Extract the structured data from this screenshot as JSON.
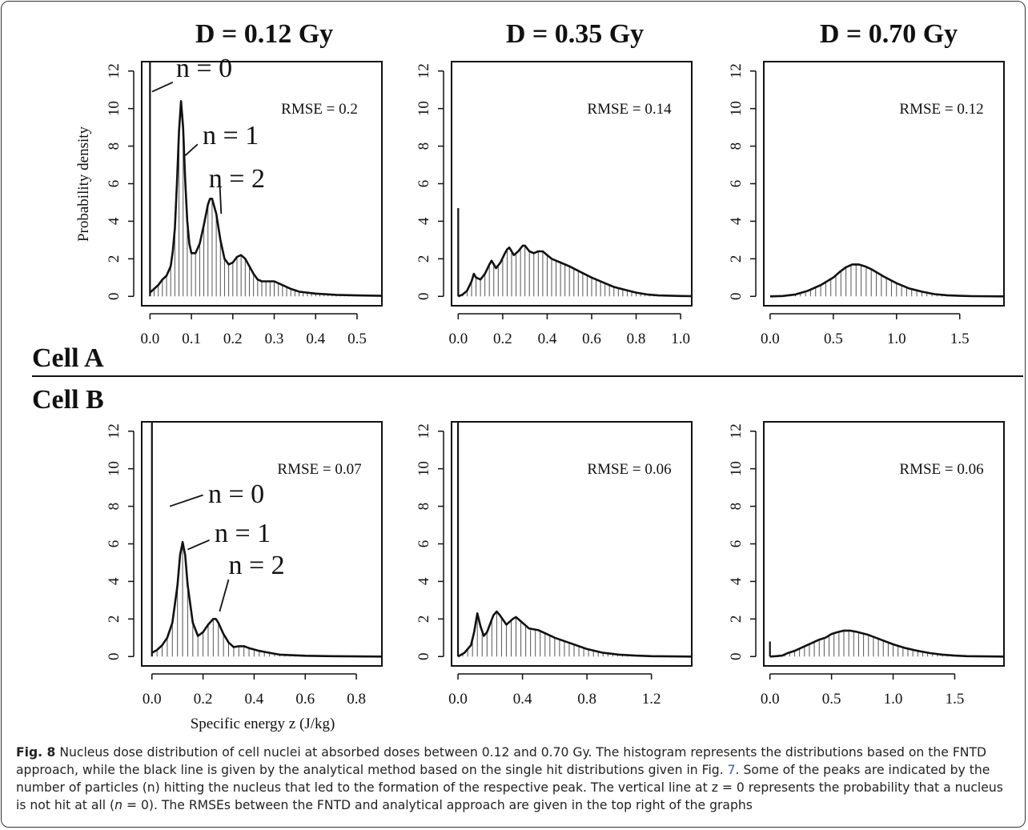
{
  "figure": {
    "column_titles": [
      "D = 0.12 Gy",
      "D = 0.35 Gy",
      "D = 0.70 Gy"
    ],
    "row_labels": [
      "Cell A",
      "Cell B"
    ],
    "y_axis_label": "Probability density",
    "x_axis_label": "Specific energy z (J/kg)"
  },
  "chart_data": [
    {
      "type": "bar",
      "cell": "Cell A",
      "dose": "D = 0.12 Gy",
      "xlim": [
        -0.02,
        0.56
      ],
      "ylim": [
        -0.5,
        12.5
      ],
      "xticks": [
        "0.0",
        "0.1",
        "0.2",
        "0.3",
        "0.4",
        "0.5"
      ],
      "xtick_values": [
        0,
        0.1,
        0.2,
        0.3,
        0.4,
        0.5
      ],
      "yticks": [
        "0",
        "2",
        "4",
        "6",
        "8",
        "10",
        "12"
      ],
      "ytick_values": [
        0,
        2,
        4,
        6,
        8,
        10,
        12
      ],
      "rmse": "RMSE = 0.2",
      "zero_hit_height": 12.5,
      "annotations": [
        {
          "label": "n = 0",
          "text_x": 0.063,
          "text_y": 11.7,
          "line": [
            [
              0.055,
              11.4
            ],
            [
              0.005,
              10.9
            ]
          ]
        },
        {
          "label": "n = 1",
          "text_x": 0.127,
          "text_y": 8.1,
          "line": [
            [
              0.115,
              8.1
            ],
            [
              0.085,
              7.5
            ]
          ]
        },
        {
          "label": "n = 2",
          "text_x": 0.142,
          "text_y": 5.8,
          "line": [
            [
              0.168,
              6.2
            ],
            [
              0.172,
              4.4
            ]
          ]
        }
      ],
      "bin_width": 0.01,
      "curve": [
        [
          0,
          0.2
        ],
        [
          0.01,
          0.4
        ],
        [
          0.02,
          0.6
        ],
        [
          0.03,
          0.9
        ],
        [
          0.04,
          1.1
        ],
        [
          0.05,
          1.6
        ],
        [
          0.055,
          2.4
        ],
        [
          0.06,
          3.6
        ],
        [
          0.065,
          6.0
        ],
        [
          0.07,
          8.8
        ],
        [
          0.075,
          10.4
        ],
        [
          0.08,
          9.0
        ],
        [
          0.085,
          6.2
        ],
        [
          0.09,
          4.0
        ],
        [
          0.095,
          2.8
        ],
        [
          0.1,
          2.3
        ],
        [
          0.11,
          2.3
        ],
        [
          0.12,
          2.8
        ],
        [
          0.13,
          3.8
        ],
        [
          0.14,
          4.9
        ],
        [
          0.145,
          5.2
        ],
        [
          0.15,
          5.2
        ],
        [
          0.16,
          4.4
        ],
        [
          0.17,
          3.0
        ],
        [
          0.18,
          2.0
        ],
        [
          0.19,
          1.7
        ],
        [
          0.2,
          1.8
        ],
        [
          0.21,
          2.1
        ],
        [
          0.22,
          2.2
        ],
        [
          0.23,
          2.0
        ],
        [
          0.24,
          1.6
        ],
        [
          0.25,
          1.2
        ],
        [
          0.26,
          0.9
        ],
        [
          0.27,
          0.8
        ],
        [
          0.28,
          0.8
        ],
        [
          0.3,
          0.8
        ],
        [
          0.32,
          0.6
        ],
        [
          0.34,
          0.4
        ],
        [
          0.36,
          0.25
        ],
        [
          0.4,
          0.15
        ],
        [
          0.45,
          0.08
        ],
        [
          0.5,
          0.05
        ],
        [
          0.56,
          0.03
        ]
      ]
    },
    {
      "type": "bar",
      "cell": "Cell A",
      "dose": "D = 0.35 Gy",
      "xlim": [
        -0.03,
        1.05
      ],
      "ylim": [
        -0.5,
        12.5
      ],
      "xticks": [
        "0.0",
        "0.2",
        "0.4",
        "0.6",
        "0.8",
        "1.0"
      ],
      "xtick_values": [
        0,
        0.2,
        0.4,
        0.6,
        0.8,
        1.0
      ],
      "yticks": [
        "0",
        "2",
        "4",
        "6",
        "8",
        "10",
        "12"
      ],
      "ytick_values": [
        0,
        2,
        4,
        6,
        8,
        10,
        12
      ],
      "rmse": "RMSE = 0.14",
      "zero_hit_height": 4.7,
      "annotations": [],
      "bin_width": 0.02,
      "curve": [
        [
          0,
          0
        ],
        [
          0.02,
          0.1
        ],
        [
          0.04,
          0.3
        ],
        [
          0.06,
          0.8
        ],
        [
          0.07,
          1.2
        ],
        [
          0.08,
          1.0
        ],
        [
          0.1,
          0.9
        ],
        [
          0.12,
          1.2
        ],
        [
          0.14,
          1.7
        ],
        [
          0.15,
          1.9
        ],
        [
          0.17,
          1.5
        ],
        [
          0.19,
          1.8
        ],
        [
          0.21,
          2.3
        ],
        [
          0.22,
          2.5
        ],
        [
          0.23,
          2.6
        ],
        [
          0.25,
          2.2
        ],
        [
          0.27,
          2.4
        ],
        [
          0.29,
          2.7
        ],
        [
          0.3,
          2.7
        ],
        [
          0.32,
          2.4
        ],
        [
          0.34,
          2.3
        ],
        [
          0.36,
          2.4
        ],
        [
          0.38,
          2.4
        ],
        [
          0.4,
          2.2
        ],
        [
          0.42,
          2.0
        ],
        [
          0.44,
          1.9
        ],
        [
          0.46,
          1.8
        ],
        [
          0.5,
          1.6
        ],
        [
          0.55,
          1.3
        ],
        [
          0.6,
          1.0
        ],
        [
          0.65,
          0.75
        ],
        [
          0.7,
          0.5
        ],
        [
          0.75,
          0.35
        ],
        [
          0.8,
          0.2
        ],
        [
          0.85,
          0.1
        ],
        [
          0.9,
          0.05
        ],
        [
          1.0,
          0.02
        ],
        [
          1.05,
          0.01
        ]
      ]
    },
    {
      "type": "bar",
      "cell": "Cell A",
      "dose": "D = 0.70 Gy",
      "xlim": [
        -0.05,
        1.85
      ],
      "ylim": [
        -0.5,
        12.5
      ],
      "xticks": [
        "0.0",
        "0.5",
        "1.0",
        "1.5"
      ],
      "xtick_values": [
        0,
        0.5,
        1.0,
        1.5
      ],
      "yticks": [
        "0",
        "2",
        "4",
        "6",
        "8",
        "10",
        "12"
      ],
      "ytick_values": [
        0,
        2,
        4,
        6,
        8,
        10,
        12
      ],
      "rmse": "RMSE = 0.12",
      "zero_hit_height": 0,
      "annotations": [],
      "bin_width": 0.04,
      "curve": [
        [
          0,
          0
        ],
        [
          0.1,
          0.02
        ],
        [
          0.2,
          0.1
        ],
        [
          0.3,
          0.3
        ],
        [
          0.4,
          0.6
        ],
        [
          0.5,
          1.0
        ],
        [
          0.55,
          1.3
        ],
        [
          0.6,
          1.55
        ],
        [
          0.65,
          1.7
        ],
        [
          0.7,
          1.7
        ],
        [
          0.75,
          1.6
        ],
        [
          0.8,
          1.45
        ],
        [
          0.9,
          1.05
        ],
        [
          1.0,
          0.7
        ],
        [
          1.1,
          0.42
        ],
        [
          1.2,
          0.25
        ],
        [
          1.3,
          0.12
        ],
        [
          1.4,
          0.06
        ],
        [
          1.5,
          0.03
        ],
        [
          1.6,
          0.01
        ],
        [
          1.85,
          0
        ]
      ]
    },
    {
      "type": "bar",
      "cell": "Cell B",
      "dose": "D = 0.12 Gy",
      "xlim": [
        -0.04,
        0.9
      ],
      "ylim": [
        -0.5,
        12.5
      ],
      "xticks": [
        "0.0",
        "0.2",
        "0.4",
        "0.6",
        "0.8"
      ],
      "xtick_values": [
        0,
        0.2,
        0.4,
        0.6,
        0.8
      ],
      "yticks": [
        "0",
        "2",
        "4",
        "6",
        "8",
        "10",
        "12"
      ],
      "ytick_values": [
        0,
        2,
        4,
        6,
        8,
        10,
        12
      ],
      "rmse": "RMSE = 0.07",
      "zero_hit_height": 12.5,
      "annotations": [
        {
          "label": "n = 0",
          "text_x": 0.22,
          "text_y": 8.2,
          "line": [
            [
              0.2,
              8.6
            ],
            [
              0.07,
              8.0
            ]
          ]
        },
        {
          "label": "n = 1",
          "text_x": 0.245,
          "text_y": 6.1,
          "line": [
            [
              0.225,
              6.2
            ],
            [
              0.14,
              5.7
            ]
          ]
        },
        {
          "label": "n = 2",
          "text_x": 0.3,
          "text_y": 4.4,
          "line": [
            [
              0.3,
              4.1
            ],
            [
              0.265,
              2.4
            ]
          ]
        }
      ],
      "bin_width": 0.02,
      "curve": [
        [
          0,
          0.2
        ],
        [
          0.02,
          0.35
        ],
        [
          0.04,
          0.6
        ],
        [
          0.06,
          1.0
        ],
        [
          0.08,
          1.8
        ],
        [
          0.1,
          3.8
        ],
        [
          0.11,
          5.4
        ],
        [
          0.12,
          6.1
        ],
        [
          0.13,
          5.4
        ],
        [
          0.14,
          3.8
        ],
        [
          0.16,
          1.8
        ],
        [
          0.18,
          1.1
        ],
        [
          0.2,
          1.3
        ],
        [
          0.22,
          1.7
        ],
        [
          0.24,
          2.0
        ],
        [
          0.25,
          2.0
        ],
        [
          0.26,
          1.8
        ],
        [
          0.28,
          1.2
        ],
        [
          0.3,
          0.75
        ],
        [
          0.32,
          0.5
        ],
        [
          0.34,
          0.55
        ],
        [
          0.36,
          0.55
        ],
        [
          0.38,
          0.45
        ],
        [
          0.42,
          0.3
        ],
        [
          0.46,
          0.2
        ],
        [
          0.5,
          0.1
        ],
        [
          0.6,
          0.04
        ],
        [
          0.7,
          0.02
        ],
        [
          0.9,
          0
        ]
      ]
    },
    {
      "type": "bar",
      "cell": "Cell B",
      "dose": "D = 0.35 Gy",
      "xlim": [
        -0.04,
        1.45
      ],
      "ylim": [
        -0.5,
        12.5
      ],
      "xticks": [
        "0.0",
        "0.4",
        "0.8",
        "1.2"
      ],
      "xtick_values": [
        0,
        0.4,
        0.8,
        1.2
      ],
      "yticks": [
        "0",
        "2",
        "4",
        "6",
        "8",
        "10",
        "12"
      ],
      "ytick_values": [
        0,
        2,
        4,
        6,
        8,
        10,
        12
      ],
      "rmse": "RMSE = 0.06",
      "zero_hit_height": 12.5,
      "annotations": [],
      "bin_width": 0.03,
      "curve": [
        [
          0,
          0
        ],
        [
          0.04,
          0.2
        ],
        [
          0.08,
          0.6
        ],
        [
          0.1,
          1.3
        ],
        [
          0.12,
          2.3
        ],
        [
          0.14,
          1.6
        ],
        [
          0.16,
          1.1
        ],
        [
          0.18,
          1.3
        ],
        [
          0.22,
          2.2
        ],
        [
          0.24,
          2.4
        ],
        [
          0.26,
          2.2
        ],
        [
          0.3,
          1.7
        ],
        [
          0.34,
          2.0
        ],
        [
          0.36,
          2.1
        ],
        [
          0.4,
          1.8
        ],
        [
          0.44,
          1.5
        ],
        [
          0.5,
          1.4
        ],
        [
          0.55,
          1.2
        ],
        [
          0.6,
          1.0
        ],
        [
          0.7,
          0.7
        ],
        [
          0.8,
          0.4
        ],
        [
          0.9,
          0.2
        ],
        [
          1.0,
          0.1
        ],
        [
          1.1,
          0.05
        ],
        [
          1.2,
          0.02
        ],
        [
          1.45,
          0
        ]
      ]
    },
    {
      "type": "bar",
      "cell": "Cell B",
      "dose": "D = 0.70 Gy",
      "xlim": [
        -0.05,
        1.9
      ],
      "ylim": [
        -0.5,
        12.5
      ],
      "xticks": [
        "0.0",
        "0.5",
        "1.0",
        "1.5"
      ],
      "xtick_values": [
        0,
        0.5,
        1.0,
        1.5
      ],
      "yticks": [
        "0",
        "2",
        "4",
        "6",
        "8",
        "10",
        "12"
      ],
      "ytick_values": [
        0,
        2,
        4,
        6,
        8,
        10,
        12
      ],
      "rmse": "RMSE = 0.06",
      "zero_hit_height": 0.8,
      "annotations": [],
      "bin_width": 0.04,
      "curve": [
        [
          0,
          0
        ],
        [
          0.05,
          0.02
        ],
        [
          0.1,
          0.05
        ],
        [
          0.15,
          0.2
        ],
        [
          0.2,
          0.3
        ],
        [
          0.3,
          0.6
        ],
        [
          0.4,
          0.9
        ],
        [
          0.45,
          1.0
        ],
        [
          0.5,
          1.2
        ],
        [
          0.55,
          1.3
        ],
        [
          0.6,
          1.38
        ],
        [
          0.65,
          1.38
        ],
        [
          0.7,
          1.32
        ],
        [
          0.8,
          1.15
        ],
        [
          0.9,
          0.9
        ],
        [
          1.0,
          0.65
        ],
        [
          1.1,
          0.45
        ],
        [
          1.2,
          0.3
        ],
        [
          1.3,
          0.18
        ],
        [
          1.4,
          0.1
        ],
        [
          1.5,
          0.05
        ],
        [
          1.6,
          0.02
        ],
        [
          1.9,
          0
        ]
      ]
    }
  ],
  "caption": {
    "label": "Fig. 8",
    "seg1": " Nucleus dose distribution of cell nuclei at absorbed doses between 0.12 and 0.70 Gy. The histogram represents the distributions based on the FNTD approach, while the black line is given by the analytical method based on the single hit distributions given in Fig. ",
    "fig_ref": "7",
    "seg2": ". Some of the peaks are indicated by the number of particles (n) hitting the nucleus that led to the formation of the respective peak. The vertical line at z = 0 represents the probability that a nucleus is not hit at all (",
    "n_italic": "n",
    "seg3": " = 0). The RMSEs between the FNTD and analytical approach are given in the top right of the graphs"
  }
}
